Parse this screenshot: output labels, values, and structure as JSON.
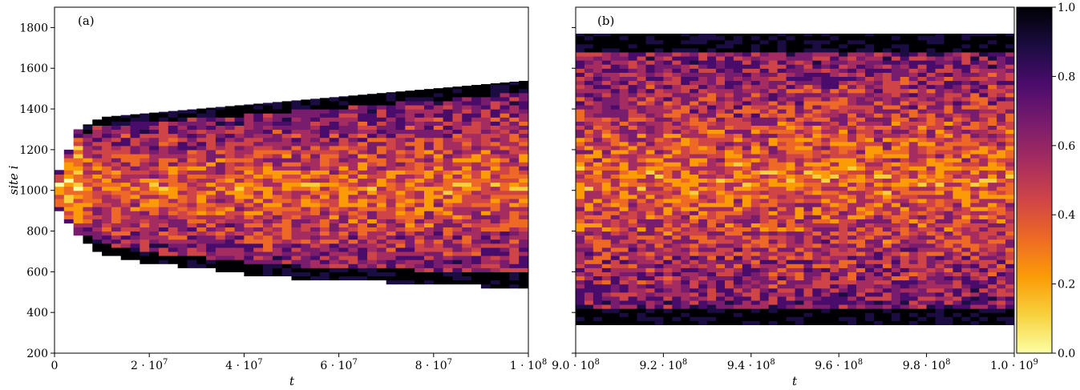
{
  "chart_data": [
    {
      "type": "heatmap",
      "panel_label": "(a)",
      "xlabel": "t",
      "ylabel": "site i",
      "xlim": [
        0,
        100000000
      ],
      "ylim": [
        200,
        1900
      ],
      "xticks": [
        0,
        20000000,
        40000000,
        60000000,
        80000000,
        100000000
      ],
      "xtick_labels": [
        {
          "text": "0",
          "exp": ""
        },
        {
          "text": "2 · 10",
          "exp": "7"
        },
        {
          "text": "4 · 10",
          "exp": "7"
        },
        {
          "text": "6 · 10",
          "exp": "7"
        },
        {
          "text": "8 · 10",
          "exp": "7"
        },
        {
          "text": "1 · 10",
          "exp": "8"
        }
      ],
      "yticks": [
        200,
        400,
        600,
        800,
        1000,
        1200,
        1400,
        1600,
        1800
      ],
      "ytick_labels": [
        "200",
        "400",
        "600",
        "800",
        "1000",
        "1200",
        "1400",
        "1600",
        "1800"
      ],
      "active_region": {
        "t": [
          0,
          5000000,
          10000000,
          20000000,
          30000000,
          40000000,
          50000000,
          60000000,
          70000000,
          80000000,
          90000000,
          100000000
        ],
        "lower_site": [
          950,
          780,
          700,
          650,
          630,
          600,
          580,
          570,
          560,
          550,
          540,
          530
        ],
        "upper_site": [
          1050,
          1300,
          1360,
          1380,
          1400,
          1420,
          1440,
          1460,
          1480,
          1500,
          1520,
          1540
        ]
      },
      "color_range": [
        0,
        1
      ],
      "grid": false
    },
    {
      "type": "heatmap",
      "panel_label": "(b)",
      "xlabel": "t",
      "ylabel": "",
      "xlim": [
        900000000,
        1000000000
      ],
      "ylim": [
        200,
        1900
      ],
      "xticks": [
        900000000,
        920000000,
        940000000,
        960000000,
        980000000,
        1000000000
      ],
      "xtick_labels": [
        {
          "text": "9.0 · 10",
          "exp": "8"
        },
        {
          "text": "9.2 · 10",
          "exp": "8"
        },
        {
          "text": "9.4 · 10",
          "exp": "8"
        },
        {
          "text": "9.6 · 10",
          "exp": "8"
        },
        {
          "text": "9.8 · 10",
          "exp": "8"
        },
        {
          "text": "1.0 · 10",
          "exp": "9"
        }
      ],
      "yticks": [
        200,
        400,
        600,
        800,
        1000,
        1200,
        1400,
        1600,
        1800
      ],
      "active_region": {
        "t": [
          900000000,
          1000000000
        ],
        "lower_site": [
          340,
          340
        ],
        "upper_site": [
          1770,
          1770
        ]
      },
      "color_range": [
        0,
        1
      ],
      "grid": false
    }
  ],
  "colorbar": {
    "colormap": "inferno-reversed",
    "range": [
      0,
      1
    ],
    "ticks": [
      0.0,
      0.2,
      0.4,
      0.6,
      0.8,
      1.0
    ],
    "tick_labels": [
      "0.0",
      "0.2",
      "0.4",
      "0.6",
      "0.8",
      "1.0"
    ],
    "colors": [
      "#fcffa4",
      "#f7d13d",
      "#fb9b06",
      "#ed6925",
      "#cf4446",
      "#a52c60",
      "#781c6d",
      "#4a0c6b",
      "#1b0c41",
      "#000004"
    ]
  }
}
